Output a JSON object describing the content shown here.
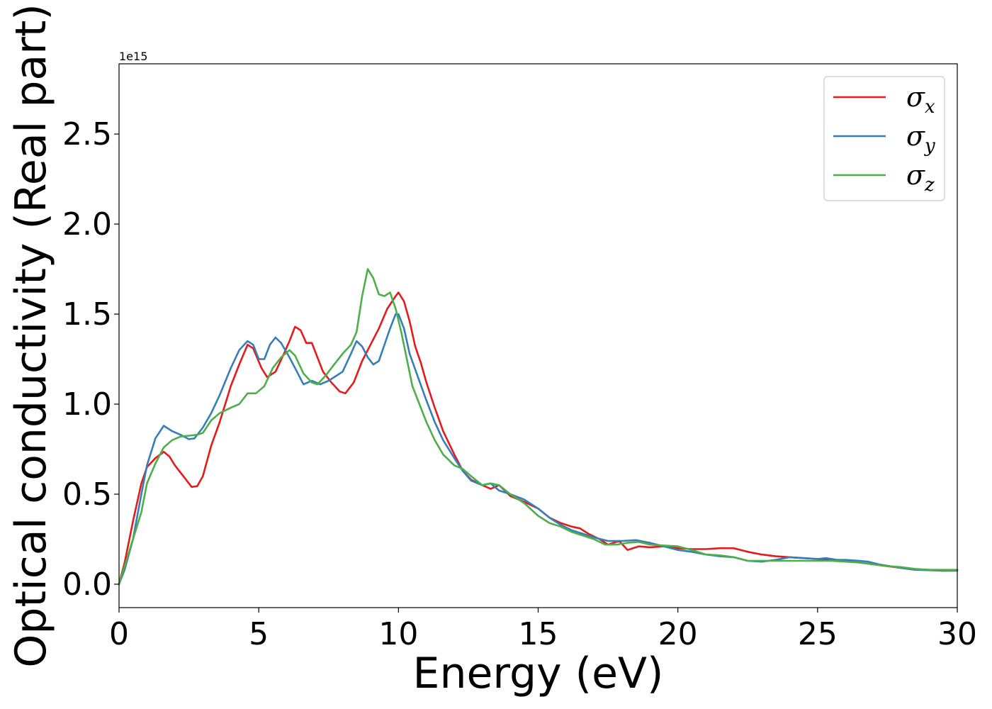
{
  "chart_data": {
    "type": "line",
    "title": "",
    "xlabel": "Energy (eV)",
    "ylabel": "Optical conductivity (Real part)",
    "y_offset_label": "1e15",
    "xlim": [
      0,
      30
    ],
    "ylim": [
      -0.13,
      2.89
    ],
    "x_ticks": [
      0,
      5,
      10,
      15,
      20,
      25,
      30
    ],
    "x_tick_labels": [
      "0",
      "5",
      "10",
      "15",
      "20",
      "25",
      "30"
    ],
    "y_ticks": [
      0.0,
      0.5,
      1.0,
      1.5,
      2.0,
      2.5
    ],
    "y_tick_labels": [
      "0.0",
      "0.5",
      "1.0",
      "1.5",
      "2.0",
      "2.5"
    ],
    "grid": false,
    "legend_position": "top-right",
    "series": [
      {
        "name": "σx",
        "symbol": "σ",
        "subscript": "x",
        "color": "#e41a1c",
        "points": [
          [
            0,
            0
          ],
          [
            0.2,
            0.12
          ],
          [
            0.5,
            0.35
          ],
          [
            0.8,
            0.56
          ],
          [
            1.0,
            0.65
          ],
          [
            1.3,
            0.7
          ],
          [
            1.6,
            0.735
          ],
          [
            1.8,
            0.71
          ],
          [
            2.0,
            0.66
          ],
          [
            2.3,
            0.6
          ],
          [
            2.6,
            0.54
          ],
          [
            2.8,
            0.545
          ],
          [
            3.0,
            0.6
          ],
          [
            3.3,
            0.77
          ],
          [
            3.6,
            0.9
          ],
          [
            4.0,
            1.1
          ],
          [
            4.3,
            1.22
          ],
          [
            4.6,
            1.33
          ],
          [
            4.8,
            1.31
          ],
          [
            5.1,
            1.2
          ],
          [
            5.3,
            1.15
          ],
          [
            5.6,
            1.18
          ],
          [
            5.9,
            1.28
          ],
          [
            6.1,
            1.35
          ],
          [
            6.3,
            1.43
          ],
          [
            6.5,
            1.41
          ],
          [
            6.7,
            1.34
          ],
          [
            6.9,
            1.34
          ],
          [
            7.1,
            1.26
          ],
          [
            7.3,
            1.18
          ],
          [
            7.6,
            1.12
          ],
          [
            7.9,
            1.07
          ],
          [
            8.1,
            1.06
          ],
          [
            8.4,
            1.12
          ],
          [
            8.7,
            1.24
          ],
          [
            9.0,
            1.33
          ],
          [
            9.3,
            1.42
          ],
          [
            9.6,
            1.53
          ],
          [
            9.9,
            1.6
          ],
          [
            10.0,
            1.62
          ],
          [
            10.2,
            1.57
          ],
          [
            10.4,
            1.46
          ],
          [
            10.6,
            1.32
          ],
          [
            10.8,
            1.23
          ],
          [
            11.0,
            1.12
          ],
          [
            11.3,
            0.98
          ],
          [
            11.6,
            0.85
          ],
          [
            12.0,
            0.72
          ],
          [
            12.3,
            0.63
          ],
          [
            12.6,
            0.58
          ],
          [
            13.0,
            0.55
          ],
          [
            13.3,
            0.53
          ],
          [
            13.6,
            0.55
          ],
          [
            14.0,
            0.49
          ],
          [
            14.3,
            0.47
          ],
          [
            14.6,
            0.45
          ],
          [
            15.0,
            0.42
          ],
          [
            15.4,
            0.37
          ],
          [
            15.8,
            0.34
          ],
          [
            16.2,
            0.32
          ],
          [
            16.5,
            0.31
          ],
          [
            16.8,
            0.28
          ],
          [
            17.2,
            0.25
          ],
          [
            17.5,
            0.22
          ],
          [
            17.9,
            0.24
          ],
          [
            18.2,
            0.19
          ],
          [
            18.6,
            0.21
          ],
          [
            19.0,
            0.205
          ],
          [
            19.5,
            0.21
          ],
          [
            20.0,
            0.2
          ],
          [
            20.5,
            0.195
          ],
          [
            21.0,
            0.195
          ],
          [
            21.5,
            0.2
          ],
          [
            22.0,
            0.2
          ],
          [
            22.5,
            0.18
          ],
          [
            23.0,
            0.165
          ],
          [
            23.5,
            0.155
          ],
          [
            24.0,
            0.15
          ],
          [
            24.5,
            0.145
          ],
          [
            25.0,
            0.14
          ],
          [
            25.5,
            0.135
          ],
          [
            26.0,
            0.13
          ],
          [
            26.5,
            0.12
          ],
          [
            27.0,
            0.11
          ],
          [
            27.5,
            0.1
          ],
          [
            28.0,
            0.09
          ],
          [
            28.5,
            0.08
          ],
          [
            29.0,
            0.078
          ],
          [
            29.5,
            0.075
          ],
          [
            30.0,
            0.08
          ]
        ]
      },
      {
        "name": "σy",
        "symbol": "σ",
        "subscript": "y",
        "color": "#377eb8",
        "points": [
          [
            0,
            0
          ],
          [
            0.2,
            0.08
          ],
          [
            0.5,
            0.25
          ],
          [
            0.8,
            0.5
          ],
          [
            1.0,
            0.66
          ],
          [
            1.3,
            0.81
          ],
          [
            1.6,
            0.88
          ],
          [
            1.9,
            0.85
          ],
          [
            2.2,
            0.83
          ],
          [
            2.5,
            0.805
          ],
          [
            2.7,
            0.81
          ],
          [
            3.0,
            0.87
          ],
          [
            3.3,
            0.95
          ],
          [
            3.6,
            1.05
          ],
          [
            4.0,
            1.2
          ],
          [
            4.3,
            1.3
          ],
          [
            4.6,
            1.35
          ],
          [
            4.8,
            1.33
          ],
          [
            5.0,
            1.25
          ],
          [
            5.2,
            1.25
          ],
          [
            5.4,
            1.33
          ],
          [
            5.6,
            1.37
          ],
          [
            5.8,
            1.34
          ],
          [
            6.1,
            1.26
          ],
          [
            6.4,
            1.17
          ],
          [
            6.6,
            1.11
          ],
          [
            6.9,
            1.13
          ],
          [
            7.2,
            1.11
          ],
          [
            7.5,
            1.13
          ],
          [
            7.8,
            1.16
          ],
          [
            8.0,
            1.18
          ],
          [
            8.3,
            1.28
          ],
          [
            8.5,
            1.35
          ],
          [
            8.7,
            1.32
          ],
          [
            8.9,
            1.26
          ],
          [
            9.1,
            1.22
          ],
          [
            9.3,
            1.24
          ],
          [
            9.5,
            1.33
          ],
          [
            9.7,
            1.42
          ],
          [
            9.9,
            1.5
          ],
          [
            10.0,
            1.5
          ],
          [
            10.2,
            1.42
          ],
          [
            10.4,
            1.28
          ],
          [
            10.7,
            1.15
          ],
          [
            11.0,
            1.02
          ],
          [
            11.3,
            0.9
          ],
          [
            11.6,
            0.8
          ],
          [
            12.0,
            0.7
          ],
          [
            12.3,
            0.63
          ],
          [
            12.6,
            0.575
          ],
          [
            13.0,
            0.55
          ],
          [
            13.3,
            0.56
          ],
          [
            13.6,
            0.52
          ],
          [
            14.0,
            0.5
          ],
          [
            14.5,
            0.47
          ],
          [
            15.0,
            0.42
          ],
          [
            15.4,
            0.37
          ],
          [
            15.8,
            0.33
          ],
          [
            16.2,
            0.3
          ],
          [
            16.6,
            0.28
          ],
          [
            17.0,
            0.26
          ],
          [
            17.5,
            0.24
          ],
          [
            18.0,
            0.24
          ],
          [
            18.5,
            0.245
          ],
          [
            19.0,
            0.23
          ],
          [
            19.5,
            0.21
          ],
          [
            20.0,
            0.19
          ],
          [
            20.5,
            0.18
          ],
          [
            21.0,
            0.165
          ],
          [
            21.5,
            0.155
          ],
          [
            22.0,
            0.15
          ],
          [
            22.5,
            0.13
          ],
          [
            23.0,
            0.125
          ],
          [
            23.5,
            0.135
          ],
          [
            24.0,
            0.15
          ],
          [
            24.5,
            0.145
          ],
          [
            25.0,
            0.14
          ],
          [
            25.3,
            0.145
          ],
          [
            25.7,
            0.135
          ],
          [
            26.0,
            0.135
          ],
          [
            26.5,
            0.13
          ],
          [
            26.8,
            0.125
          ],
          [
            27.2,
            0.11
          ],
          [
            27.6,
            0.1
          ],
          [
            28.0,
            0.09
          ],
          [
            28.5,
            0.08
          ],
          [
            29.0,
            0.08
          ],
          [
            29.5,
            0.075
          ],
          [
            30.0,
            0.075
          ]
        ]
      },
      {
        "name": "σz",
        "symbol": "σ",
        "subscript": "z",
        "color": "#4daf4a",
        "points": [
          [
            0,
            0
          ],
          [
            0.2,
            0.1
          ],
          [
            0.5,
            0.25
          ],
          [
            0.8,
            0.4
          ],
          [
            1.0,
            0.56
          ],
          [
            1.3,
            0.67
          ],
          [
            1.6,
            0.76
          ],
          [
            1.9,
            0.8
          ],
          [
            2.2,
            0.82
          ],
          [
            2.5,
            0.825
          ],
          [
            2.8,
            0.83
          ],
          [
            3.0,
            0.84
          ],
          [
            3.3,
            0.91
          ],
          [
            3.6,
            0.95
          ],
          [
            4.0,
            0.98
          ],
          [
            4.3,
            1.0
          ],
          [
            4.6,
            1.06
          ],
          [
            4.9,
            1.06
          ],
          [
            5.2,
            1.1
          ],
          [
            5.5,
            1.2
          ],
          [
            5.8,
            1.26
          ],
          [
            6.1,
            1.3
          ],
          [
            6.3,
            1.27
          ],
          [
            6.6,
            1.17
          ],
          [
            6.9,
            1.12
          ],
          [
            7.1,
            1.11
          ],
          [
            7.4,
            1.16
          ],
          [
            7.7,
            1.22
          ],
          [
            8.0,
            1.28
          ],
          [
            8.3,
            1.33
          ],
          [
            8.5,
            1.4
          ],
          [
            8.7,
            1.6
          ],
          [
            8.9,
            1.75
          ],
          [
            9.1,
            1.7
          ],
          [
            9.3,
            1.61
          ],
          [
            9.5,
            1.6
          ],
          [
            9.7,
            1.62
          ],
          [
            9.9,
            1.53
          ],
          [
            10.1,
            1.4
          ],
          [
            10.3,
            1.25
          ],
          [
            10.5,
            1.1
          ],
          [
            10.8,
            0.98
          ],
          [
            11.0,
            0.9
          ],
          [
            11.3,
            0.8
          ],
          [
            11.6,
            0.72
          ],
          [
            12.0,
            0.66
          ],
          [
            12.3,
            0.64
          ],
          [
            12.6,
            0.6
          ],
          [
            13.0,
            0.55
          ],
          [
            13.3,
            0.56
          ],
          [
            13.6,
            0.55
          ],
          [
            14.0,
            0.5
          ],
          [
            14.5,
            0.45
          ],
          [
            15.0,
            0.38
          ],
          [
            15.4,
            0.34
          ],
          [
            15.8,
            0.32
          ],
          [
            16.2,
            0.29
          ],
          [
            16.6,
            0.27
          ],
          [
            17.0,
            0.25
          ],
          [
            17.4,
            0.22
          ],
          [
            17.8,
            0.22
          ],
          [
            18.2,
            0.23
          ],
          [
            18.6,
            0.235
          ],
          [
            19.0,
            0.22
          ],
          [
            19.5,
            0.215
          ],
          [
            20.0,
            0.21
          ],
          [
            20.5,
            0.19
          ],
          [
            21.0,
            0.165
          ],
          [
            21.5,
            0.16
          ],
          [
            22.0,
            0.15
          ],
          [
            22.5,
            0.13
          ],
          [
            23.0,
            0.13
          ],
          [
            23.5,
            0.13
          ],
          [
            24.0,
            0.13
          ],
          [
            24.5,
            0.13
          ],
          [
            25.0,
            0.13
          ],
          [
            25.5,
            0.13
          ],
          [
            26.0,
            0.125
          ],
          [
            26.5,
            0.12
          ],
          [
            27.0,
            0.11
          ],
          [
            27.5,
            0.1
          ],
          [
            28.0,
            0.095
          ],
          [
            28.5,
            0.085
          ],
          [
            29.0,
            0.08
          ],
          [
            29.5,
            0.08
          ],
          [
            30.0,
            0.08
          ]
        ]
      }
    ]
  }
}
